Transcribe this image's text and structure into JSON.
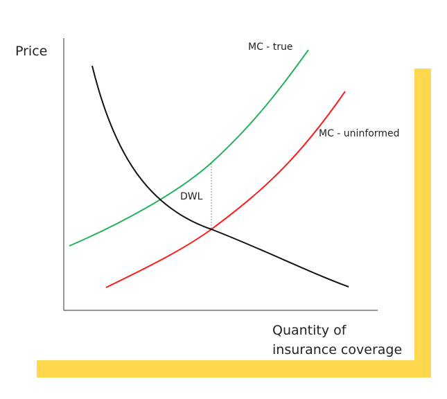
{
  "labels": {
    "y_axis": "Price",
    "x_axis_line1": "Quantity of",
    "x_axis_line2": "insurance coverage",
    "mc_true": "MC - true",
    "mc_uninformed": "MC - uninformed",
    "dwl": "DWL"
  },
  "colors": {
    "mc_true": "#22b35a",
    "mc_uninformed": "#ff1a1a",
    "demand": "#111111",
    "highlight": "#ffd84d"
  }
}
